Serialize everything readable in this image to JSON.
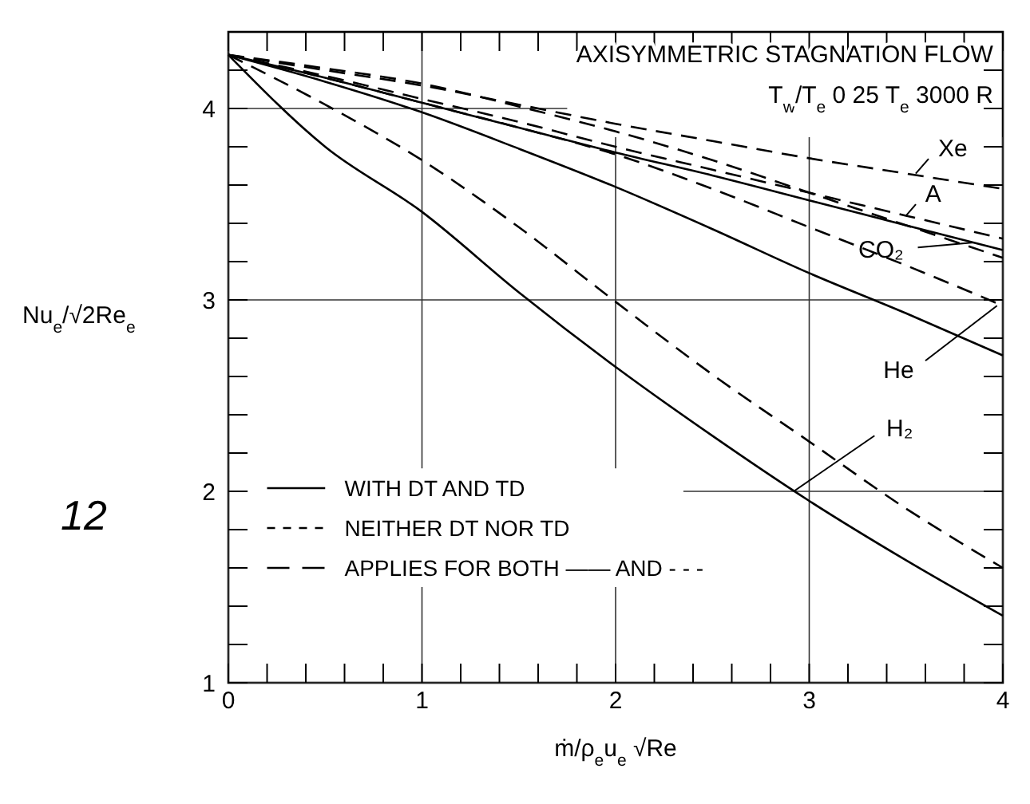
{
  "chart_data": {
    "type": "line",
    "title": "AXISYMMETRIC STAGNATION FLOW",
    "subtitle": "T$_{w}$/T$_{e}$  0 25   T$_{e}$  3000 R",
    "xlabel": "ṁ/ρ$_{e}$u$_{e}$ √Re",
    "ylabel": "Nu$_{e}$/√2Re$_{e}$",
    "xlim": [
      0,
      4
    ],
    "ylim": [
      1,
      4.4
    ],
    "xticks": [
      0,
      {
        "value": 0.2,
        "label": null
      },
      {
        "value": 0.4,
        "label": null
      },
      {
        "value": 0.6,
        "label": null
      },
      {
        "value": 0.8,
        "label": null
      },
      1,
      {
        "value": 1.2,
        "label": null
      },
      {
        "value": 1.4,
        "label": null
      },
      {
        "value": 1.6,
        "label": null
      },
      {
        "value": 1.8,
        "label": null
      },
      2,
      {
        "value": 2.2,
        "label": null
      },
      {
        "value": 2.4,
        "label": null
      },
      {
        "value": 2.6,
        "label": null
      },
      {
        "value": 2.8,
        "label": null
      },
      3,
      {
        "value": 3.2,
        "label": null
      },
      {
        "value": 3.4,
        "label": null
      },
      {
        "value": 3.6,
        "label": null
      },
      {
        "value": 3.8,
        "label": null
      },
      4
    ],
    "yticks": [
      1,
      {
        "value": 1.2,
        "label": null
      },
      {
        "value": 1.4,
        "label": null
      },
      {
        "value": 1.6,
        "label": null
      },
      {
        "value": 1.8,
        "label": null
      },
      2,
      {
        "value": 2.2,
        "label": null
      },
      {
        "value": 2.4,
        "label": null
      },
      {
        "value": 2.6,
        "label": null
      },
      {
        "value": 2.8,
        "label": null
      },
      3,
      {
        "value": 3.2,
        "label": null
      },
      {
        "value": 3.4,
        "label": null
      },
      {
        "value": 3.6,
        "label": null
      },
      {
        "value": 3.8,
        "label": null
      },
      4,
      {
        "value": 4.2,
        "label": null
      }
    ],
    "grid": true,
    "marker": "none",
    "x": [
      0,
      0.5,
      1,
      1.5,
      2,
      2.5,
      3,
      3.5,
      4
    ],
    "series": [
      {
        "color": "#000000",
        "line_style": "dashed",
        "values": [
          4.28,
          4.2,
          4.12,
          4.02,
          3.92,
          3.83,
          3.74,
          3.66,
          3.58
        ]
      },
      {
        "color": "#000000",
        "line_style": "dashed",
        "values": [
          4.28,
          4.17,
          4.05,
          3.93,
          3.8,
          3.68,
          3.56,
          3.44,
          3.32
        ]
      },
      {
        "color": "#000000",
        "line_style": "solid",
        "values": [
          4.28,
          4.16,
          4.03,
          3.9,
          3.77,
          3.65,
          3.52,
          3.39,
          3.26
        ]
      },
      {
        "color": "#000000",
        "line_style": "dashed",
        "values": [
          4.28,
          4.21,
          4.13,
          4.01,
          3.88,
          3.73,
          3.56,
          3.39,
          3.22
        ]
      },
      {
        "color": "#000000",
        "line_style": "solid",
        "values": [
          4.28,
          4.14,
          3.98,
          3.79,
          3.59,
          3.37,
          3.14,
          2.93,
          2.71
        ]
      },
      {
        "color": "#000000",
        "line_style": "dashed",
        "values": [
          4.28,
          4.16,
          4.03,
          3.9,
          3.76,
          3.58,
          3.38,
          3.18,
          2.97
        ]
      },
      {
        "color": "#000000",
        "line_style": "solid",
        "values": [
          4.28,
          3.8,
          3.46,
          3.04,
          2.65,
          2.29,
          1.95,
          1.64,
          1.35
        ]
      },
      {
        "color": "#000000",
        "line_style": "dashed",
        "values": [
          4.28,
          4.02,
          3.73,
          3.38,
          2.99,
          2.61,
          2.26,
          1.91,
          1.6
        ]
      }
    ],
    "annotations": [
      {
        "text": "Xe",
        "x": 3.55,
        "y": 3.66
      },
      {
        "text": "A",
        "x": 3.5,
        "y": 3.44
      },
      {
        "text": "CO₂",
        "x": 3.85,
        "y": 3.3
      },
      {
        "text": "He",
        "x": 3.97,
        "y": 2.97
      },
      {
        "text": "H₂",
        "x": 2.92,
        "y": 2.0
      },
      "WITH DT AND TD",
      "NEITHER DT NOR TD",
      "APPLIES FOR BOTH —— AND - - -",
      "12"
    ]
  }
}
